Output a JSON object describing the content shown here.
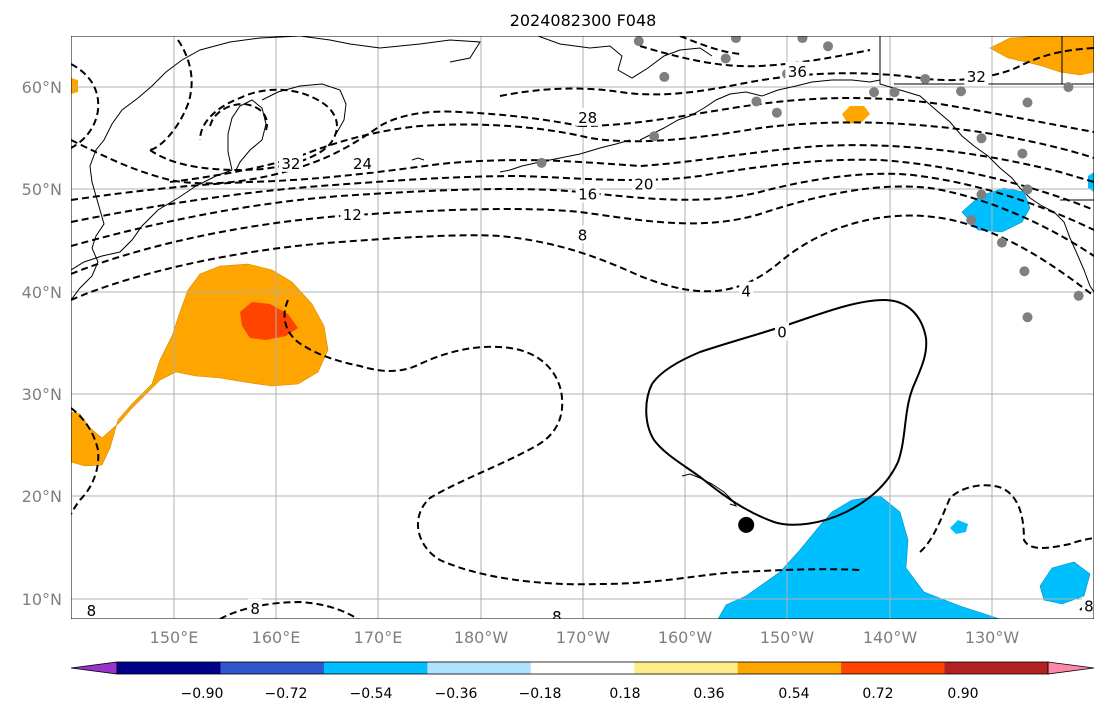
{
  "title": "2024082300 F048",
  "map": {
    "lon_range": [
      140,
      240
    ],
    "lat_range": [
      8,
      65
    ],
    "lon_ticks": [
      {
        "lon": 150,
        "label": "150°E"
      },
      {
        "lon": 160,
        "label": "160°E"
      },
      {
        "lon": 170,
        "label": "170°E"
      },
      {
        "lon": 180,
        "label": "180°W"
      },
      {
        "lon": 190,
        "label": "170°W"
      },
      {
        "lon": 200,
        "label": "160°W"
      },
      {
        "lon": 210,
        "label": "150°W"
      },
      {
        "lon": 220,
        "label": "140°W"
      },
      {
        "lon": 230,
        "label": "130°W"
      }
    ],
    "lat_ticks": [
      {
        "lat": 10,
        "label": "10°N"
      },
      {
        "lat": 20,
        "label": "20°N"
      },
      {
        "lat": 30,
        "label": "30°N"
      },
      {
        "lat": 40,
        "label": "40°N"
      },
      {
        "lat": 50,
        "label": "50°N"
      },
      {
        "lat": 60,
        "label": "60°N"
      }
    ],
    "contour_labels": [
      {
        "text": "36",
        "lon": 211,
        "lat": 61.5
      },
      {
        "text": "32",
        "lon": 228.5,
        "lat": 61
      },
      {
        "text": "32",
        "lon": 161.5,
        "lat": 52.5
      },
      {
        "text": "28",
        "lon": 190.5,
        "lat": 57
      },
      {
        "text": "24",
        "lon": 168.5,
        "lat": 52.5
      },
      {
        "text": "20",
        "lon": 196,
        "lat": 50.5
      },
      {
        "text": "16",
        "lon": 190.5,
        "lat": 49.5
      },
      {
        "text": "12",
        "lon": 167.5,
        "lat": 47.5
      },
      {
        "text": "8",
        "lon": 190,
        "lat": 45.5
      },
      {
        "text": "4",
        "lon": 206,
        "lat": 40
      },
      {
        "text": "0",
        "lon": 209.5,
        "lat": 36
      },
      {
        "text": "8",
        "lon": 142,
        "lat": 8.8
      },
      {
        "text": "8",
        "lon": 158,
        "lat": 9
      },
      {
        "text": "8",
        "lon": 187.5,
        "lat": 8.2
      },
      {
        "text": "8",
        "lon": 239.5,
        "lat": 9.2
      }
    ],
    "stations_gray": [
      [
        195.5,
        64.5
      ],
      [
        205,
        64.8
      ],
      [
        211.5,
        64.8
      ],
      [
        214,
        64
      ],
      [
        204,
        62.8
      ],
      [
        198,
        61
      ],
      [
        210,
        61.3
      ],
      [
        207,
        58.6
      ],
      [
        197,
        55.2
      ],
      [
        237.5,
        60
      ],
      [
        244,
        58.6
      ],
      [
        223.5,
        60.8
      ],
      [
        220.5,
        59.5
      ],
      [
        218.5,
        59.5
      ],
      [
        227,
        59.6
      ],
      [
        233.5,
        58.5
      ],
      [
        229,
        55
      ],
      [
        233,
        53.5
      ],
      [
        233.5,
        50
      ],
      [
        229,
        49.5
      ],
      [
        228,
        47
      ],
      [
        231,
        44.8
      ],
      [
        233.2,
        42
      ],
      [
        233.5,
        37.5
      ],
      [
        238.5,
        39.6
      ],
      [
        186,
        52.6
      ],
      [
        209,
        57.5
      ]
    ],
    "station_black": [
      206,
      17.2
    ]
  },
  "colorbar": {
    "colors": [
      "#9933cc",
      "#000088",
      "#3355cc",
      "#00bfff",
      "#b0e2ff",
      "#ffffff",
      "#ffee88",
      "#ffa500",
      "#ff4400",
      "#b22222",
      "#ff88aa"
    ],
    "labels": [
      "−0.90",
      "−0.72",
      "−0.54",
      "−0.36",
      "−0.18",
      "0.18",
      "0.36",
      "0.54",
      "0.72",
      "0.90"
    ]
  }
}
